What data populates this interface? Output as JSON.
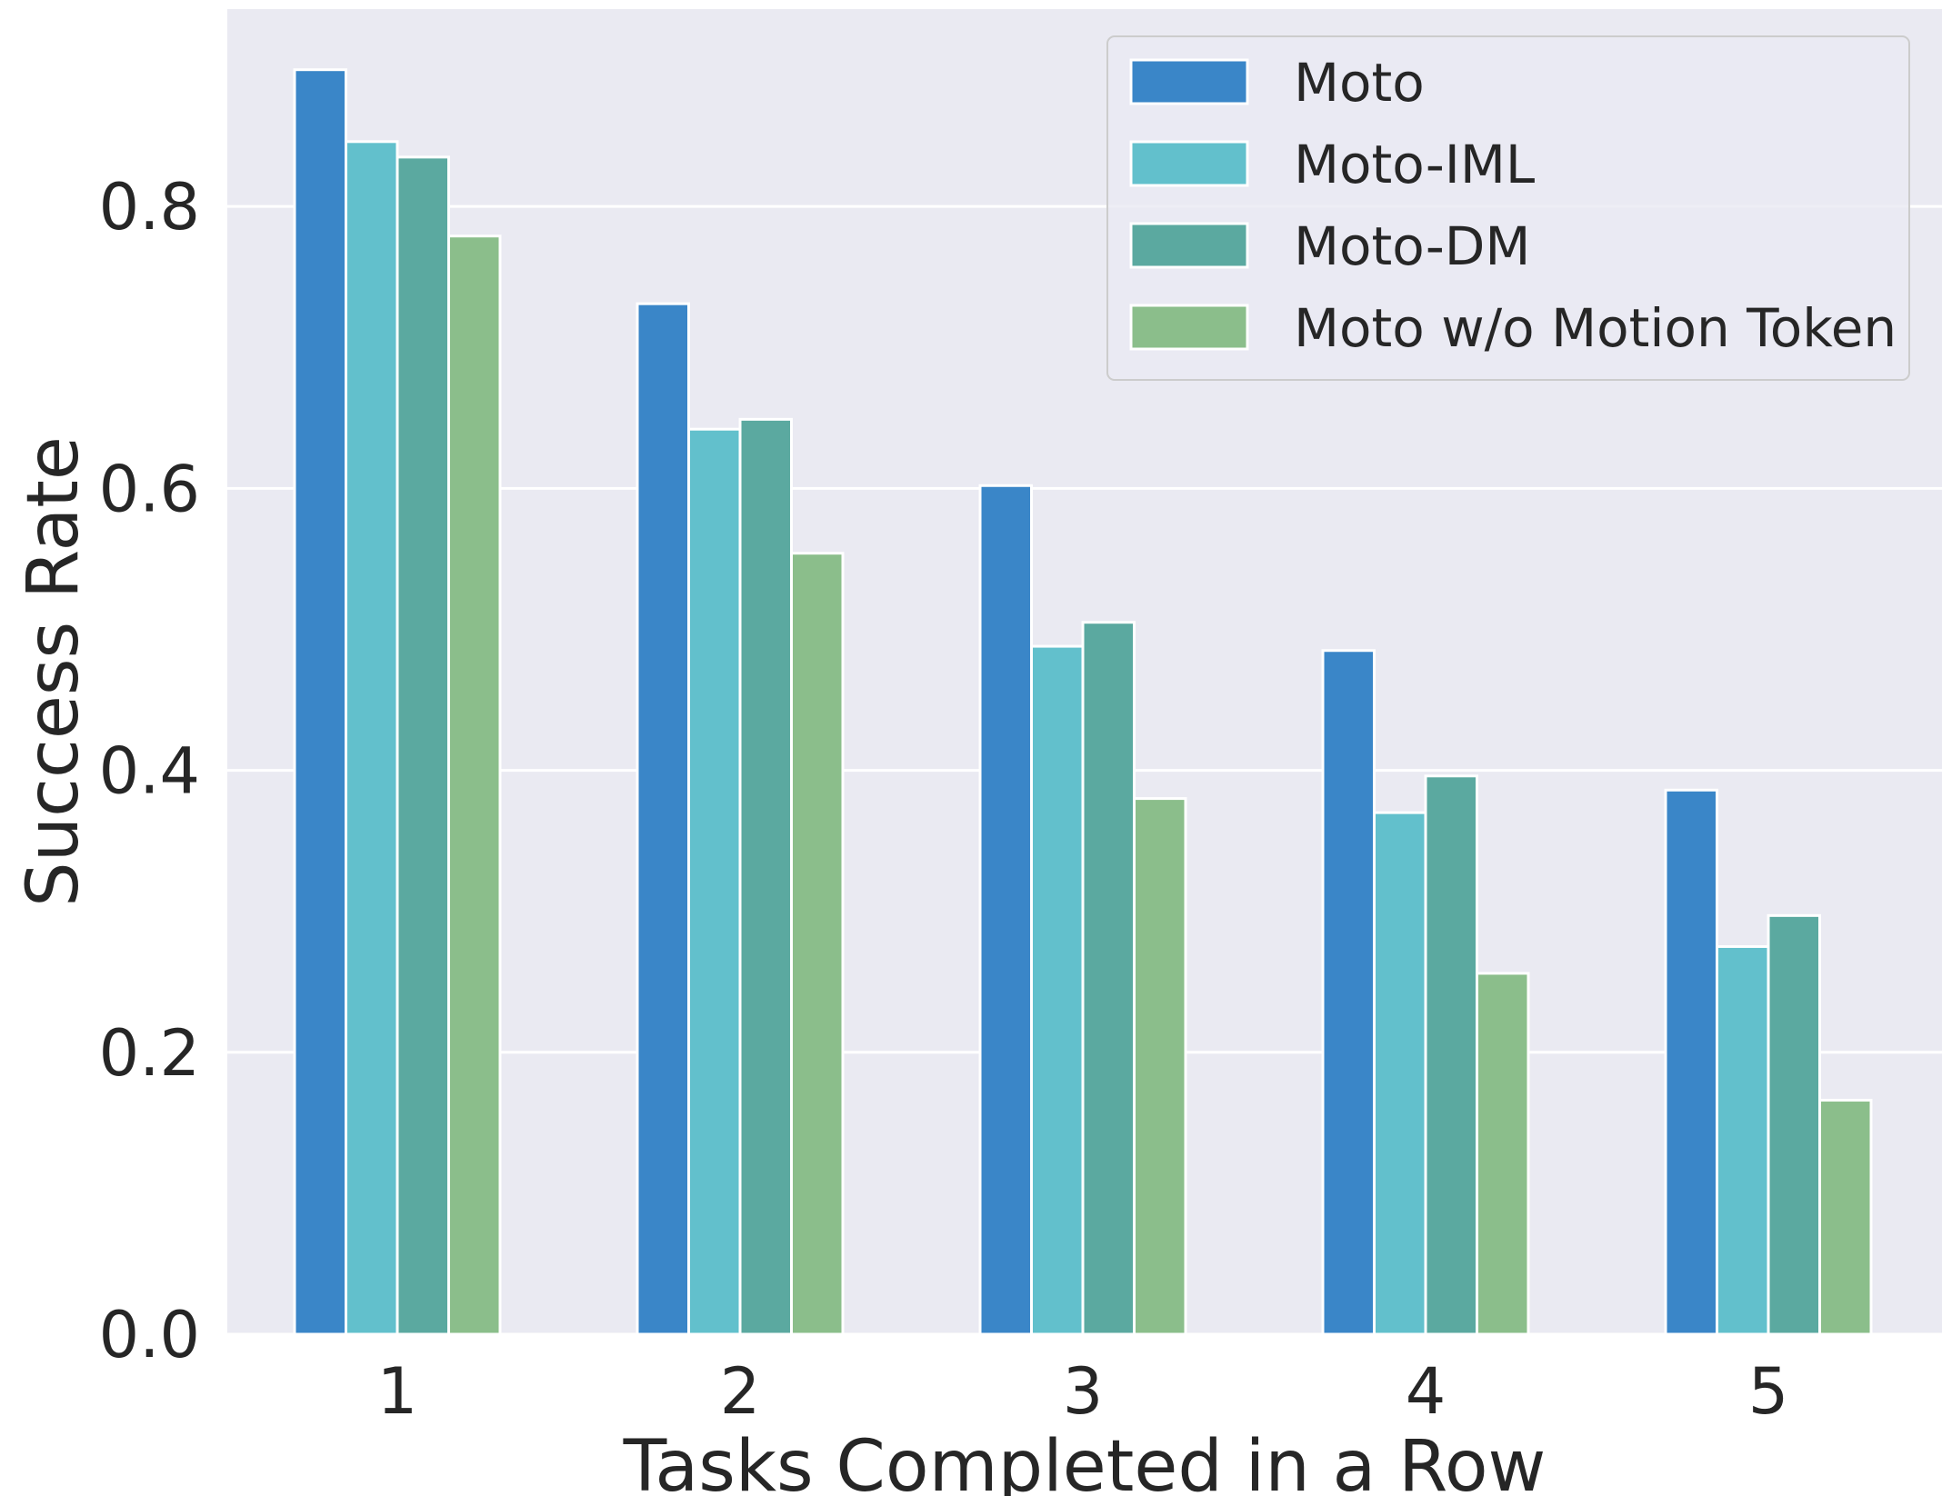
{
  "chart_data": {
    "type": "bar",
    "title": "",
    "xlabel": "Tasks Completed in a Row",
    "ylabel": "Success Rate",
    "categories": [
      "1",
      "2",
      "3",
      "4",
      "5"
    ],
    "ylim": [
      0,
      0.94
    ],
    "yticks": [
      0.0,
      0.2,
      0.4,
      0.6,
      0.8
    ],
    "ytick_labels": [
      "0.0",
      "0.2",
      "0.4",
      "0.6",
      "0.8"
    ],
    "grid": true,
    "legend_position": "top-right",
    "background_color": "#eaeaf2",
    "series": [
      {
        "name": "Moto",
        "color": "#3a86c8",
        "values": [
          0.897,
          0.731,
          0.602,
          0.485,
          0.386
        ]
      },
      {
        "name": "Moto-IML",
        "color": "#62c0cc",
        "values": [
          0.846,
          0.642,
          0.488,
          0.37,
          0.275
        ]
      },
      {
        "name": "Moto-DM",
        "color": "#5ba9a0",
        "values": [
          0.835,
          0.649,
          0.505,
          0.396,
          0.297
        ]
      },
      {
        "name": "Moto w/o Motion Token",
        "color": "#8bbe8b",
        "values": [
          0.779,
          0.554,
          0.38,
          0.256,
          0.166
        ]
      }
    ]
  }
}
